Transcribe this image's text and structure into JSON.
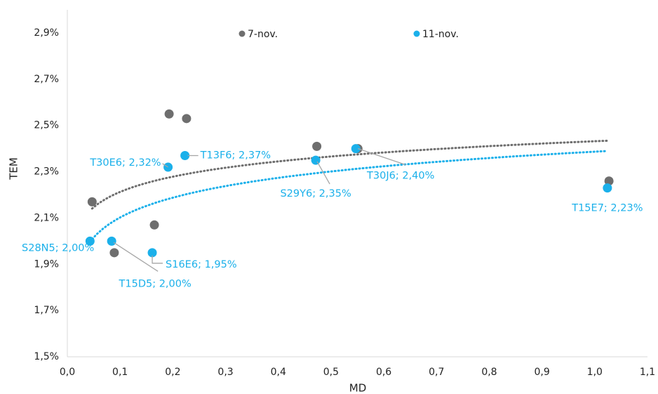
{
  "chart_data": {
    "type": "scatter",
    "x_label": "MD",
    "y_label": "TEM",
    "xlim": [
      0,
      1.1
    ],
    "xticks": [
      {
        "value": 0,
        "label": "0,0"
      },
      {
        "value": 0.1,
        "label": "0,1"
      },
      {
        "value": 0.2,
        "label": "0,2"
      },
      {
        "value": 0.3,
        "label": "0,3"
      },
      {
        "value": 0.4,
        "label": "0,4"
      },
      {
        "value": 0.5,
        "label": "0,5"
      },
      {
        "value": 0.6,
        "label": "0,6"
      },
      {
        "value": 0.7,
        "label": "0,7"
      },
      {
        "value": 0.8,
        "label": "0,8"
      },
      {
        "value": 0.9,
        "label": "0,9"
      },
      {
        "value": 1.0,
        "label": "1,0"
      },
      {
        "value": 1.1,
        "label": "1,1"
      }
    ],
    "ylim": [
      1.5,
      2.9
    ],
    "yticks": [
      {
        "value": 1.5,
        "label": "1,5%"
      },
      {
        "value": 1.7,
        "label": "1,7%"
      },
      {
        "value": 1.9,
        "label": "1,9%"
      },
      {
        "value": 2.1,
        "label": "2,1%"
      },
      {
        "value": 2.3,
        "label": "2,3%"
      },
      {
        "value": 2.5,
        "label": "2,5%"
      },
      {
        "value": 2.7,
        "label": "2,7%"
      },
      {
        "value": 2.9,
        "label": "2,9%"
      }
    ],
    "trendline": "log",
    "legend": "top",
    "series": [
      {
        "name": "7-nov.",
        "color": "#6e6e6e",
        "x": [
          0.047,
          0.089,
          0.165,
          0.193,
          0.226,
          0.473,
          0.551,
          1.027
        ],
        "values": [
          2.17,
          1.95,
          2.07,
          2.55,
          2.53,
          2.41,
          2.4,
          2.26
        ]
      },
      {
        "name": "11-nov.",
        "color": "#1bb0ea",
        "x": [
          0.043,
          0.084,
          0.161,
          0.191,
          0.223,
          0.471,
          0.547,
          1.024
        ],
        "values": [
          2.0,
          2.0,
          1.95,
          2.32,
          2.37,
          2.35,
          2.4,
          2.23
        ],
        "value_labels": [
          "S28N5; 2,00%",
          "T15D5; 2,00%",
          "S16E6; 1,95%",
          "T30E6; 2,32%",
          "T13F6; 2,37%",
          "S29Y6; 2,35%",
          "T30J6; 2,40%",
          "T15E7; 2,23%"
        ]
      }
    ]
  }
}
